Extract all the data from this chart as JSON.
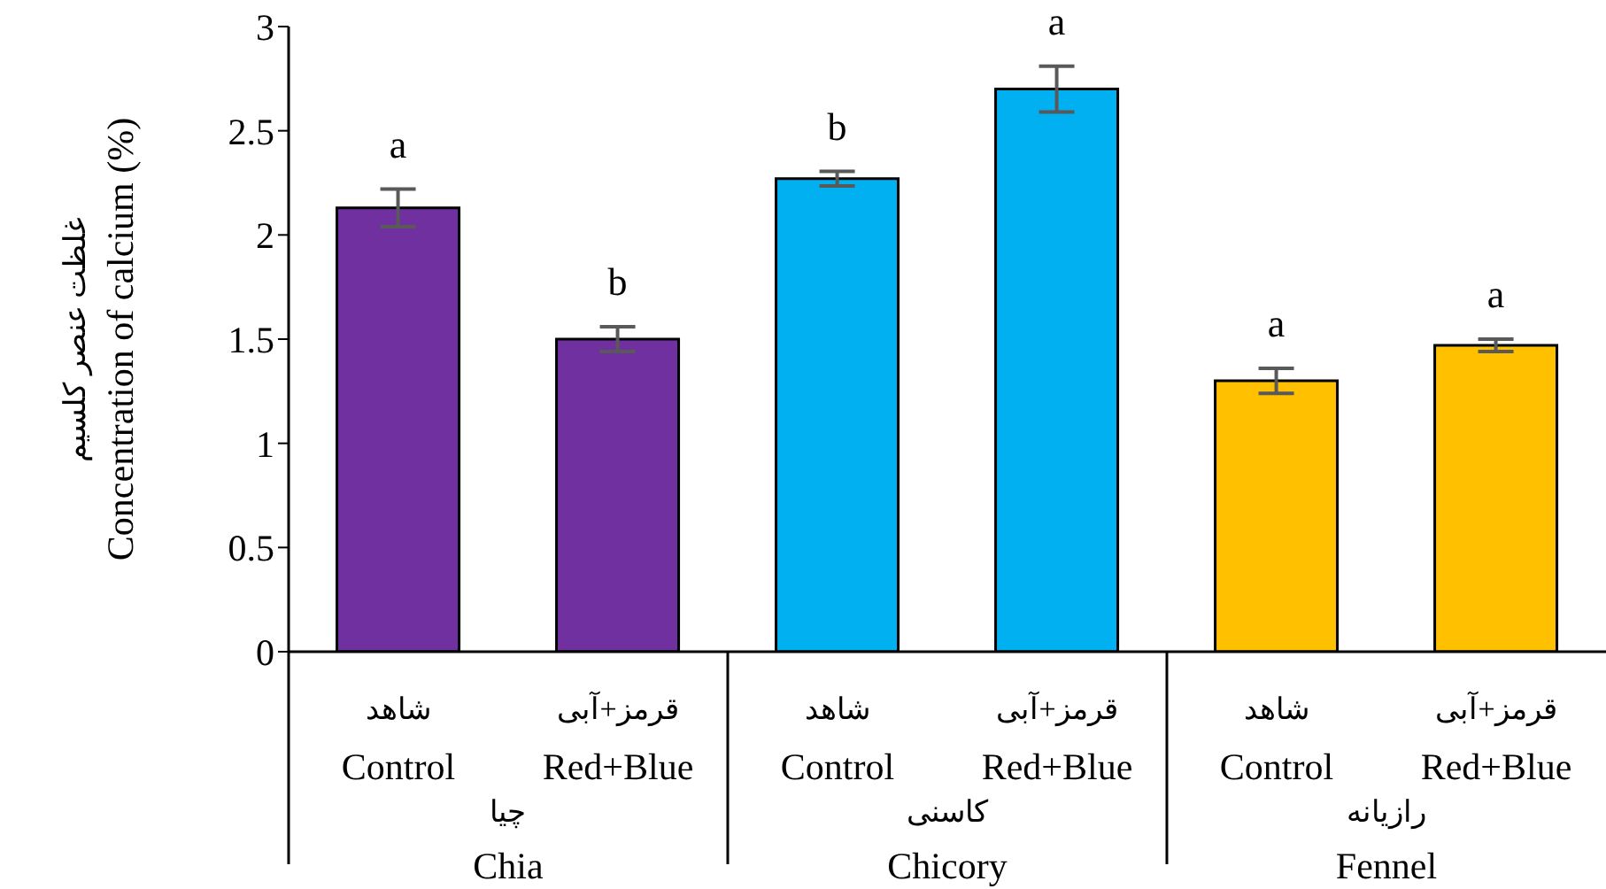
{
  "chart_data": {
    "type": "bar",
    "ylabel": "غلظت عنصر کلسیم\nConcentration of calcium (%)",
    "categories": [
      "شاهد\nControl",
      "قرمز+آبی\nRed+Blue",
      "شاهد\nControl",
      "قرمز+آبی\nRed+Blue",
      "شاهد\nControl",
      "قرمز+آبی\nRed+Blue"
    ],
    "values": [
      2.13,
      1.5,
      2.27,
      2.7,
      1.3,
      1.47
    ],
    "errors": [
      0.09,
      0.06,
      0.035,
      0.11,
      0.06,
      0.03
    ],
    "value_labels": [
      "a",
      "b",
      "b",
      "a",
      "a",
      "a"
    ],
    "colors": [
      "#7030a0",
      "#7030a0",
      "#00b0f0",
      "#00b0f0",
      "#ffc000",
      "#ffc000"
    ],
    "annotations": [
      "چیا\nChia",
      "کاسنی\nChicory",
      "رازیانه\nFennel"
    ],
    "ylim": [
      0,
      3
    ],
    "yticks": [
      0,
      0.5,
      1,
      1.5,
      2,
      2.5,
      3
    ],
    "grid": false,
    "legend": false
  }
}
